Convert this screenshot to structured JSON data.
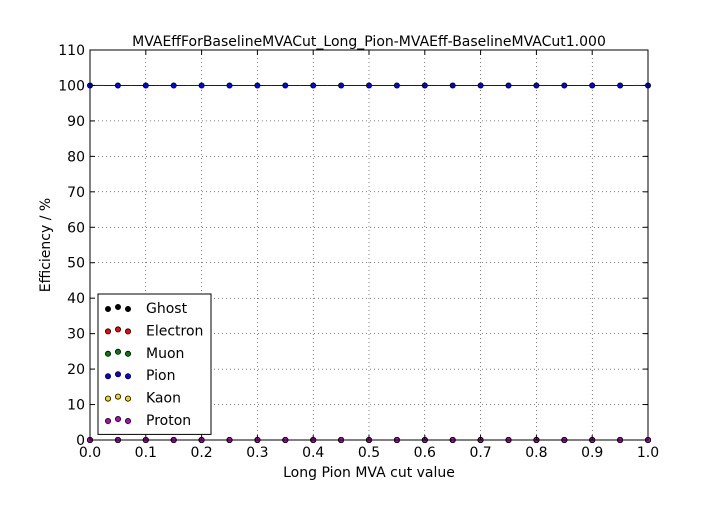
{
  "chart_data": {
    "type": "scatter",
    "title": "MVAEffForBaselineMVACut_Long_Pion-MVAEff-BaselineMVACut1.000",
    "xlabel": "Long Pion MVA cut value",
    "ylabel": "Efficiency / %",
    "xlim": [
      0.0,
      1.0
    ],
    "ylim": [
      0,
      110
    ],
    "x_ticks": [
      "0.0",
      "0.1",
      "0.2",
      "0.3",
      "0.4",
      "0.5",
      "0.6",
      "0.7",
      "0.8",
      "0.9",
      "1.0"
    ],
    "y_ticks": [
      "0",
      "10",
      "20",
      "30",
      "40",
      "50",
      "60",
      "70",
      "80",
      "90",
      "100",
      "110"
    ],
    "grid": true,
    "legend_position": "lower-left",
    "x": [
      0.0,
      0.05,
      0.1,
      0.15,
      0.2,
      0.25,
      0.3,
      0.35,
      0.4,
      0.45,
      0.5,
      0.55,
      0.6,
      0.65,
      0.7,
      0.75,
      0.8,
      0.85,
      0.9,
      0.95,
      1.0
    ],
    "series": [
      {
        "name": "Ghost",
        "color": "#000000",
        "values": [
          0,
          0,
          0,
          0,
          0,
          0,
          0,
          0,
          0,
          0,
          0,
          0,
          0,
          0,
          0,
          0,
          0,
          0,
          0,
          0,
          0
        ]
      },
      {
        "name": "Electron",
        "color": "#ff0000",
        "values": [
          0,
          0,
          0,
          0,
          0,
          0,
          0,
          0,
          0,
          0,
          0,
          0,
          0,
          0,
          0,
          0,
          0,
          0,
          0,
          0,
          0
        ]
      },
      {
        "name": "Muon",
        "color": "#008000",
        "values": [
          0,
          0,
          0,
          0,
          0,
          0,
          0,
          0,
          0,
          0,
          0,
          0,
          0,
          0,
          0,
          0,
          0,
          0,
          0,
          0,
          0
        ]
      },
      {
        "name": "Pion",
        "color": "#0000ff",
        "values": [
          100,
          100,
          100,
          100,
          100,
          100,
          100,
          100,
          100,
          100,
          100,
          100,
          100,
          100,
          100,
          100,
          100,
          100,
          100,
          100,
          100
        ]
      },
      {
        "name": "Kaon",
        "color": "#ffd700",
        "values": [
          0,
          0,
          0,
          0,
          0,
          0,
          0,
          0,
          0,
          0,
          0,
          0,
          0,
          0,
          0,
          0,
          0,
          0,
          0,
          0,
          0
        ]
      },
      {
        "name": "Proton",
        "color": "#bf00bf",
        "values": [
          0,
          0,
          0,
          0,
          0,
          0,
          0,
          0,
          0,
          0,
          0,
          0,
          0,
          0,
          0,
          0,
          0,
          0,
          0,
          0,
          0
        ]
      }
    ]
  }
}
